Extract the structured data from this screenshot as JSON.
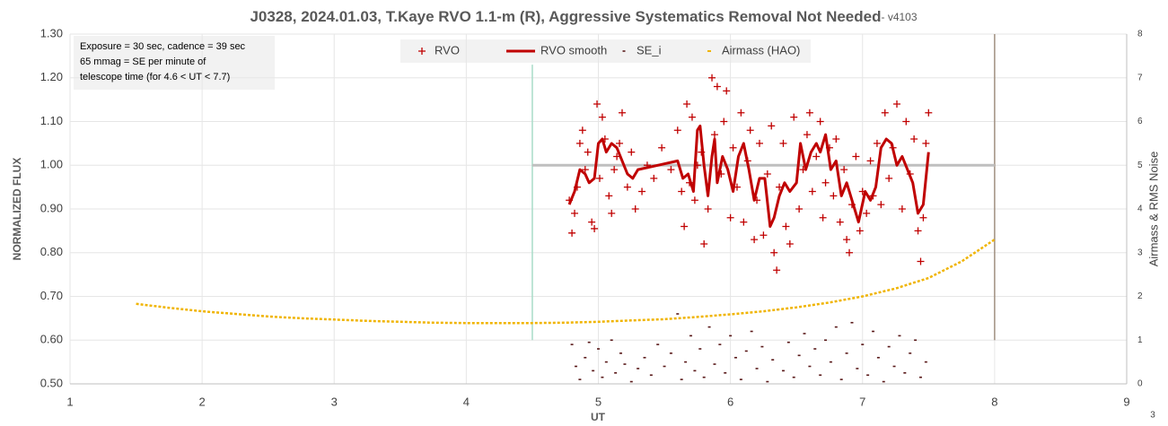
{
  "chart_data": {
    "type": "scatter",
    "title": "J0328, 2024.01.03, T.Kaye RVO 1.1-m (R), Aggressive Systematics Removal Not Needed",
    "title_suffix": "- v4103",
    "xlabel": "UT",
    "ylabel": "NORMALIZED FLUX",
    "y2label": "Airmass & RMS Noise",
    "corner_label": "3",
    "annotation": [
      "Exposure = 30 sec, cadence = 39 sec",
      "65 mmag = SE per minute of",
      "telescope time  (for 4.6 < UT < 7.7)"
    ],
    "xlim": [
      1,
      9
    ],
    "xticks": [
      1,
      2,
      3,
      4,
      5,
      6,
      7,
      8,
      9
    ],
    "ylim": [
      0.5,
      1.3
    ],
    "yticks": [
      {
        "value": 0.5,
        "label": "0.50"
      },
      {
        "value": 0.6,
        "label": "0.60"
      },
      {
        "value": 0.7,
        "label": "0.70"
      },
      {
        "value": 0.8,
        "label": "0.80"
      },
      {
        "value": 0.9,
        "label": "0.90"
      },
      {
        "value": 1.0,
        "label": "1.00"
      },
      {
        "value": 1.1,
        "label": "1.10"
      },
      {
        "value": 1.2,
        "label": "1.20"
      },
      {
        "value": 1.3,
        "label": "1.30"
      }
    ],
    "y2lim": [
      0,
      8
    ],
    "y2ticks": [
      0,
      1,
      2,
      3,
      4,
      5,
      6,
      7,
      8
    ],
    "grid": true,
    "reference_lines": [
      {
        "x": [
          4.5,
          4.5
        ],
        "y": [
          0.6,
          1.23
        ],
        "color": "#a8dcc8"
      },
      {
        "x": [
          8,
          8
        ],
        "y": [
          0.6,
          1.3
        ],
        "color": "#a09080"
      },
      {
        "x": [
          4.5,
          8
        ],
        "y": [
          1.0,
          1.0
        ],
        "color": "#bfbfbf"
      }
    ],
    "series": [
      {
        "name": "RVO",
        "color": "#c00000",
        "style": "plus",
        "x": [
          4.78,
          4.8,
          4.82,
          4.84,
          4.86,
          4.88,
          4.9,
          4.92,
          4.95,
          4.97,
          4.99,
          5.01,
          5.03,
          5.05,
          5.08,
          5.1,
          5.12,
          5.14,
          5.16,
          5.18,
          5.22,
          5.25,
          5.28,
          5.33,
          5.37,
          5.42,
          5.48,
          5.55,
          5.6,
          5.63,
          5.65,
          5.67,
          5.69,
          5.71,
          5.73,
          5.75,
          5.78,
          5.8,
          5.83,
          5.86,
          5.88,
          5.9,
          5.93,
          5.95,
          5.97,
          6.0,
          6.02,
          6.05,
          6.08,
          6.1,
          6.13,
          6.15,
          6.18,
          6.2,
          6.22,
          6.25,
          6.28,
          6.31,
          6.33,
          6.35,
          6.37,
          6.4,
          6.42,
          6.45,
          6.48,
          6.52,
          6.55,
          6.58,
          6.6,
          6.62,
          6.65,
          6.68,
          6.7,
          6.72,
          6.75,
          6.78,
          6.8,
          6.83,
          6.86,
          6.88,
          6.9,
          6.92,
          6.95,
          6.98,
          7.0,
          7.03,
          7.06,
          7.08,
          7.11,
          7.14,
          7.17,
          7.2,
          7.23,
          7.26,
          7.3,
          7.33,
          7.36,
          7.39,
          7.42,
          7.44,
          7.46,
          7.48,
          7.5
        ],
        "values": [
          0.92,
          0.845,
          0.89,
          0.95,
          1.05,
          1.08,
          0.99,
          1.03,
          0.87,
          0.855,
          1.14,
          0.97,
          1.11,
          1.06,
          0.93,
          0.89,
          0.99,
          1.02,
          1.05,
          1.12,
          0.95,
          1.03,
          0.9,
          0.94,
          1.0,
          0.97,
          1.04,
          0.99,
          1.08,
          0.94,
          0.86,
          1.14,
          0.96,
          1.11,
          0.92,
          1.0,
          1.03,
          0.82,
          0.9,
          1.2,
          1.07,
          1.18,
          0.98,
          1.1,
          1.17,
          0.88,
          1.04,
          0.95,
          1.12,
          0.87,
          1.01,
          1.08,
          0.83,
          0.92,
          1.05,
          0.84,
          0.98,
          1.09,
          0.8,
          0.76,
          0.95,
          1.05,
          0.86,
          0.82,
          1.11,
          0.9,
          0.99,
          1.07,
          1.12,
          0.94,
          1.02,
          1.1,
          0.88,
          0.96,
          1.04,
          0.93,
          1.06,
          0.87,
          0.99,
          0.83,
          0.8,
          0.91,
          1.02,
          0.85,
          0.94,
          0.89,
          1.01,
          0.93,
          1.05,
          0.91,
          1.12,
          0.97,
          1.04,
          1.14,
          0.9,
          1.1,
          0.98,
          1.06,
          0.85,
          0.78,
          0.88,
          1.05,
          1.12
        ]
      },
      {
        "name": "RVO smooth",
        "color": "#c00000",
        "style": "line",
        "x": [
          4.78,
          4.82,
          4.86,
          4.9,
          4.93,
          4.97,
          5.0,
          5.03,
          5.06,
          5.1,
          5.14,
          5.18,
          5.22,
          5.26,
          5.3,
          5.45,
          5.6,
          5.64,
          5.68,
          5.72,
          5.75,
          5.77,
          5.8,
          5.83,
          5.86,
          5.88,
          5.9,
          5.94,
          5.98,
          6.02,
          6.06,
          6.1,
          6.14,
          6.18,
          6.22,
          6.26,
          6.3,
          6.33,
          6.37,
          6.41,
          6.45,
          6.5,
          6.53,
          6.57,
          6.61,
          6.65,
          6.68,
          6.72,
          6.76,
          6.8,
          6.84,
          6.88,
          6.92,
          6.97,
          7.02,
          7.06,
          7.1,
          7.14,
          7.18,
          7.22,
          7.26,
          7.3,
          7.34,
          7.38,
          7.42,
          7.46,
          7.5
        ],
        "values": [
          0.91,
          0.94,
          0.99,
          0.98,
          0.96,
          0.97,
          1.05,
          1.06,
          1.03,
          1.05,
          1.04,
          1.01,
          0.98,
          0.97,
          0.99,
          1.0,
          1.01,
          0.97,
          0.98,
          0.94,
          1.08,
          1.09,
          1.0,
          0.93,
          1.02,
          1.06,
          0.96,
          1.02,
          0.99,
          0.94,
          1.02,
          1.05,
          0.99,
          0.92,
          0.97,
          0.97,
          0.86,
          0.88,
          0.93,
          0.96,
          0.94,
          0.96,
          1.05,
          0.99,
          1.03,
          1.05,
          1.03,
          1.07,
          0.99,
          1.01,
          0.93,
          0.96,
          0.92,
          0.87,
          0.94,
          0.92,
          0.95,
          1.04,
          1.06,
          1.05,
          1.0,
          1.02,
          0.99,
          0.96,
          0.89,
          0.91,
          1.03
        ]
      },
      {
        "name": "SE_i",
        "color": "#5a1a1a",
        "style": "dash",
        "axis": "y2",
        "x": [
          4.8,
          4.83,
          4.86,
          4.9,
          4.93,
          4.96,
          5.0,
          5.03,
          5.06,
          5.1,
          5.13,
          5.17,
          5.2,
          5.25,
          5.3,
          5.35,
          5.4,
          5.45,
          5.5,
          5.55,
          5.6,
          5.63,
          5.66,
          5.7,
          5.73,
          5.77,
          5.8,
          5.84,
          5.88,
          5.92,
          5.96,
          6.0,
          6.04,
          6.08,
          6.12,
          6.16,
          6.2,
          6.24,
          6.28,
          6.32,
          6.36,
          6.4,
          6.44,
          6.48,
          6.52,
          6.56,
          6.6,
          6.64,
          6.68,
          6.72,
          6.76,
          6.8,
          6.84,
          6.88,
          6.92,
          6.96,
          7.0,
          7.04,
          7.08,
          7.12,
          7.16,
          7.2,
          7.24,
          7.28,
          7.32,
          7.36,
          7.4,
          7.44,
          7.48
        ],
        "values": [
          0.9,
          0.4,
          0.1,
          0.6,
          0.95,
          0.3,
          0.8,
          0.15,
          0.5,
          1.0,
          0.25,
          0.7,
          0.45,
          0.05,
          0.35,
          0.6,
          0.2,
          0.9,
          0.4,
          0.7,
          1.6,
          0.1,
          0.5,
          1.1,
          0.3,
          0.8,
          0.15,
          1.3,
          0.45,
          0.9,
          0.25,
          1.1,
          0.6,
          0.1,
          0.75,
          1.2,
          0.35,
          0.85,
          0.05,
          0.55,
          1.7,
          0.3,
          0.95,
          0.15,
          0.65,
          1.15,
          0.4,
          0.8,
          0.2,
          1.0,
          0.5,
          1.3,
          0.1,
          0.7,
          1.4,
          0.35,
          0.9,
          0.2,
          1.2,
          0.6,
          0.05,
          0.85,
          0.4,
          1.1,
          0.25,
          0.7,
          1.0,
          0.15,
          0.5
        ]
      },
      {
        "name": "Airmass (HAO)",
        "color": "#f0b400",
        "style": "dotline",
        "axis": "y2",
        "x": [
          1.5,
          1.75,
          2.0,
          2.25,
          2.5,
          2.75,
          3.0,
          3.25,
          3.5,
          3.75,
          4.0,
          4.25,
          4.5,
          4.75,
          5.0,
          5.25,
          5.5,
          5.75,
          6.0,
          6.25,
          6.5,
          6.75,
          7.0,
          7.25,
          7.5,
          7.75,
          8.0
        ],
        "values": [
          1.83,
          1.74,
          1.66,
          1.6,
          1.54,
          1.5,
          1.47,
          1.44,
          1.42,
          1.4,
          1.39,
          1.39,
          1.39,
          1.4,
          1.42,
          1.45,
          1.48,
          1.53,
          1.59,
          1.66,
          1.75,
          1.86,
          2.0,
          2.18,
          2.42,
          2.8,
          3.3
        ]
      }
    ]
  }
}
